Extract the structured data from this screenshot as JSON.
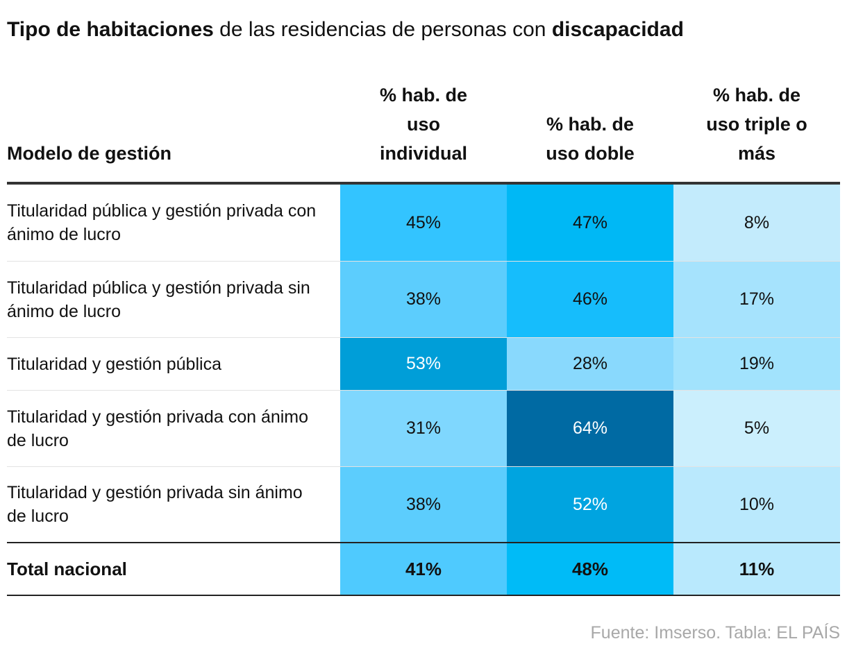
{
  "title": {
    "bold_1": "Tipo de habitaciones",
    "regular": " de las residencias de personas con ",
    "bold_2": "discapacidad"
  },
  "footer": {
    "source": "Fuente: Imserso",
    "separator": ". ",
    "credit": "Tabla: EL PAÍS"
  },
  "colors": {
    "text": "#111111",
    "text_inverse": "#ffffff",
    "footer": "#a8a8a8",
    "scale_light": "#d6f3ff",
    "scale_dark": "#006aa3"
  },
  "chart_data": {
    "type": "table",
    "title": "Tipo de habitaciones de las residencias de personas con discapacidad",
    "columns": [
      "Modelo de gestión",
      "% hab. de uso individual",
      "% hab. de uso doble",
      "% hab. de uso triple o más"
    ],
    "header_lines": {
      "label": [
        "Modelo de gestión"
      ],
      "individual": [
        "% hab. de",
        "uso",
        "individual"
      ],
      "doble": [
        "% hab. de",
        "uso doble"
      ],
      "triple": [
        "% hab. de",
        "uso triple o",
        "más"
      ]
    },
    "rows": [
      {
        "label": "Titularidad pública y gestión privada con ánimo de lucro",
        "values": [
          45,
          47,
          8
        ],
        "display": [
          "45%",
          "47%",
          "8%"
        ],
        "colors": [
          "#33c4ff",
          "#00b8f5",
          "#c3ebfc"
        ],
        "text_colors": [
          "#111111",
          "#111111",
          "#111111"
        ]
      },
      {
        "label": "Titularidad pública y gestión privada sin ánimo de lucro",
        "values": [
          38,
          46,
          17
        ],
        "display": [
          "38%",
          "46%",
          "17%"
        ],
        "colors": [
          "#5ccdfd",
          "#16bdfc",
          "#a6e3fd"
        ],
        "text_colors": [
          "#111111",
          "#111111",
          "#111111"
        ]
      },
      {
        "label": "Titularidad y gestión pública",
        "values": [
          53,
          28,
          19
        ],
        "display": [
          "53%",
          "28%",
          "19%"
        ],
        "colors": [
          "#009ed8",
          "#89d9fd",
          "#a2e3fd"
        ],
        "text_colors": [
          "#ffffff",
          "#111111",
          "#111111"
        ]
      },
      {
        "label": "Titularidad y gestión privada con ánimo de lucro",
        "values": [
          31,
          64,
          5
        ],
        "display": [
          "31%",
          "64%",
          "5%"
        ],
        "colors": [
          "#7fd7fe",
          "#006aa3",
          "#cbeffd"
        ],
        "text_colors": [
          "#111111",
          "#ffffff",
          "#111111"
        ]
      },
      {
        "label": "Titularidad y gestión privada sin ánimo de lucro",
        "values": [
          38,
          52,
          10
        ],
        "display": [
          "38%",
          "52%",
          "10%"
        ],
        "colors": [
          "#5ccdfd",
          "#00a4e0",
          "#bae9fd"
        ],
        "text_colors": [
          "#111111",
          "#ffffff",
          "#111111"
        ]
      }
    ],
    "total": {
      "label": "Total nacional",
      "values": [
        41,
        48,
        11
      ],
      "display": [
        "41%",
        "48%",
        "11%"
      ],
      "colors": [
        "#4fcafe",
        "#00bbf7",
        "#b9e9fd"
      ],
      "text_colors": [
        "#111111",
        "#111111",
        "#111111"
      ]
    }
  }
}
